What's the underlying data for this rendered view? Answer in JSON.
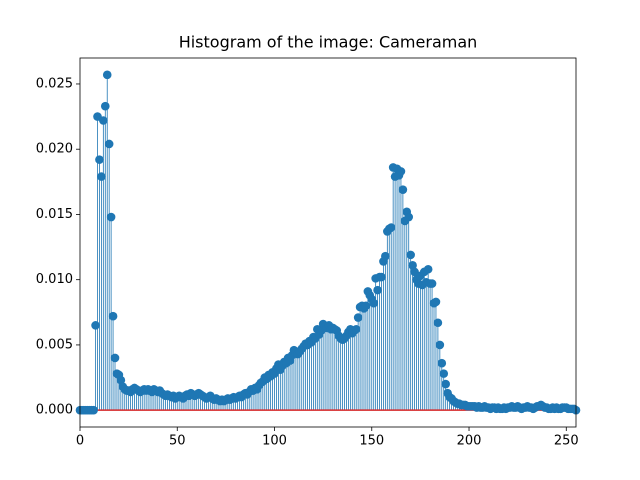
{
  "chart_data": {
    "type": "stem",
    "title": "Histogram of the image: Cameraman",
    "color": "#1f77b4",
    "baseline_color": "#d62728",
    "x": [
      0,
      1,
      2,
      3,
      4,
      5,
      6,
      7,
      8,
      9,
      10,
      11,
      12,
      13,
      14,
      15,
      16,
      17,
      18,
      19,
      20,
      21,
      22,
      23,
      24,
      25,
      26,
      27,
      28,
      29,
      30,
      31,
      32,
      33,
      34,
      35,
      36,
      37,
      38,
      39,
      40,
      41,
      42,
      43,
      44,
      45,
      46,
      47,
      48,
      49,
      50,
      51,
      52,
      53,
      54,
      55,
      56,
      57,
      58,
      59,
      60,
      61,
      62,
      63,
      64,
      65,
      66,
      67,
      68,
      69,
      70,
      71,
      72,
      73,
      74,
      75,
      76,
      77,
      78,
      79,
      80,
      81,
      82,
      83,
      84,
      85,
      86,
      87,
      88,
      89,
      90,
      91,
      92,
      93,
      94,
      95,
      96,
      97,
      98,
      99,
      100,
      101,
      102,
      103,
      104,
      105,
      106,
      107,
      108,
      109,
      110,
      111,
      112,
      113,
      114,
      115,
      116,
      117,
      118,
      119,
      120,
      121,
      122,
      123,
      124,
      125,
      126,
      127,
      128,
      129,
      130,
      131,
      132,
      133,
      134,
      135,
      136,
      137,
      138,
      139,
      140,
      141,
      142,
      143,
      144,
      145,
      146,
      147,
      148,
      149,
      150,
      151,
      152,
      153,
      154,
      155,
      156,
      157,
      158,
      159,
      160,
      161,
      162,
      163,
      164,
      165,
      166,
      167,
      168,
      169,
      170,
      171,
      172,
      173,
      174,
      175,
      176,
      177,
      178,
      179,
      180,
      181,
      182,
      183,
      184,
      185,
      186,
      187,
      188,
      189,
      190,
      191,
      192,
      193,
      194,
      195,
      196,
      197,
      198,
      199,
      200,
      201,
      202,
      203,
      204,
      205,
      206,
      207,
      208,
      209,
      210,
      211,
      212,
      213,
      214,
      215,
      216,
      217,
      218,
      219,
      220,
      221,
      222,
      223,
      224,
      225,
      226,
      227,
      228,
      229,
      230,
      231,
      232,
      233,
      234,
      235,
      236,
      237,
      238,
      239,
      240,
      241,
      242,
      243,
      244,
      245,
      246,
      247,
      248,
      249,
      250,
      251,
      252,
      253,
      254,
      255
    ],
    "values": [
      0,
      0,
      0,
      0,
      0,
      0,
      0,
      0,
      0.0065,
      0.0225,
      0.0192,
      0.0179,
      0.0222,
      0.0233,
      0.0257,
      0.0204,
      0.0148,
      0.0072,
      0.004,
      0.0028,
      0.0027,
      0.0023,
      0.0018,
      0.0016,
      0.0015,
      0.0015,
      0.0014,
      0.0016,
      0.0017,
      0.0016,
      0.0015,
      0.0014,
      0.0015,
      0.0016,
      0.0015,
      0.0016,
      0.0015,
      0.0014,
      0.0016,
      0.0015,
      0.0014,
      0.0015,
      0.0013,
      0.0012,
      0.0011,
      0.0012,
      0.0011,
      0.001,
      0.0011,
      0.0009,
      0.001,
      0.0011,
      0.001,
      0.0009,
      0.0011,
      0.0012,
      0.0011,
      0.0013,
      0.0012,
      0.0011,
      0.0012,
      0.0013,
      0.0012,
      0.0011,
      0.001,
      0.0009,
      0.001,
      0.0011,
      0.0009,
      0.0008,
      0.0009,
      0.0008,
      0.0007,
      0.0008,
      0.0007,
      0.0008,
      0.0009,
      0.0008,
      0.0009,
      0.001,
      0.0009,
      0.001,
      0.0011,
      0.001,
      0.0012,
      0.0013,
      0.0012,
      0.0014,
      0.0016,
      0.0015,
      0.0017,
      0.0016,
      0.0019,
      0.0021,
      0.0022,
      0.0025,
      0.0024,
      0.0027,
      0.0026,
      0.0029,
      0.0028,
      0.0032,
      0.0035,
      0.0031,
      0.0034,
      0.0037,
      0.0036,
      0.004,
      0.0038,
      0.0042,
      0.0046,
      0.0044,
      0.0043,
      0.0045,
      0.0047,
      0.0049,
      0.0051,
      0.005,
      0.0053,
      0.0052,
      0.0056,
      0.0055,
      0.0062,
      0.0058,
      0.0061,
      0.0066,
      0.0064,
      0.0063,
      0.0065,
      0.0062,
      0.0063,
      0.0062,
      0.0061,
      0.0057,
      0.0055,
      0.0054,
      0.0055,
      0.0057,
      0.006,
      0.0062,
      0.0059,
      0.0061,
      0.0062,
      0.0071,
      0.0079,
      0.008,
      0.0078,
      0.008,
      0.0091,
      0.0088,
      0.0085,
      0.0082,
      0.0101,
      0.0092,
      0.0102,
      0.0102,
      0.0114,
      0.0118,
      0.0137,
      0.0139,
      0.014,
      0.0186,
      0.0179,
      0.0185,
      0.018,
      0.0183,
      0.0169,
      0.0145,
      0.0152,
      0.0148,
      0.0119,
      0.0111,
      0.0106,
      0.01,
      0.0097,
      0.0103,
      0.0096,
      0.0106,
      0.0098,
      0.0108,
      0.0097,
      0.0097,
      0.0082,
      0.0083,
      0.0067,
      0.005,
      0.0036,
      0.0028,
      0.002,
      0.0013,
      0.001,
      0.0009,
      0.0007,
      0.0006,
      0.0005,
      0.0005,
      0.0004,
      0.0004,
      0.0004,
      0.0003,
      0.0003,
      0.0003,
      0.0003,
      0.0003,
      0.0002,
      0.0003,
      0.0002,
      0.0002,
      0.0003,
      0.0002,
      0.0002,
      0.0001,
      0.0002,
      0.0002,
      0.0001,
      0.0002,
      0.0001,
      0.0001,
      0.0002,
      0.0001,
      0.0002,
      0.0002,
      0.0003,
      0.0002,
      0.0002,
      0.0003,
      0.0002,
      0.0001,
      0.0002,
      0.0002,
      0.0003,
      0.0002,
      0.0002,
      0.0001,
      0.0002,
      0.0003,
      0.0003,
      0.0004,
      0.0003,
      0.0002,
      0.0002,
      0.0001,
      0.0001,
      0.0002,
      0.0001,
      0.0002,
      0.0001,
      0.0001,
      0.0002,
      0.0002,
      0.0002,
      0.0001,
      0.0001,
      0.0001,
      0.0001,
      0
    ],
    "xlim": [
      0,
      255
    ],
    "xticks": [
      0,
      50,
      100,
      150,
      200,
      250
    ],
    "ylim": [
      -0.00129,
      0.02699
    ],
    "yticks": [
      {
        "value": 0,
        "label": "0.000"
      },
      0.005,
      {
        "value": 0.01,
        "label": "0.010"
      },
      0.015,
      {
        "value": 0.02,
        "label": "0.020"
      },
      0.025
    ]
  }
}
